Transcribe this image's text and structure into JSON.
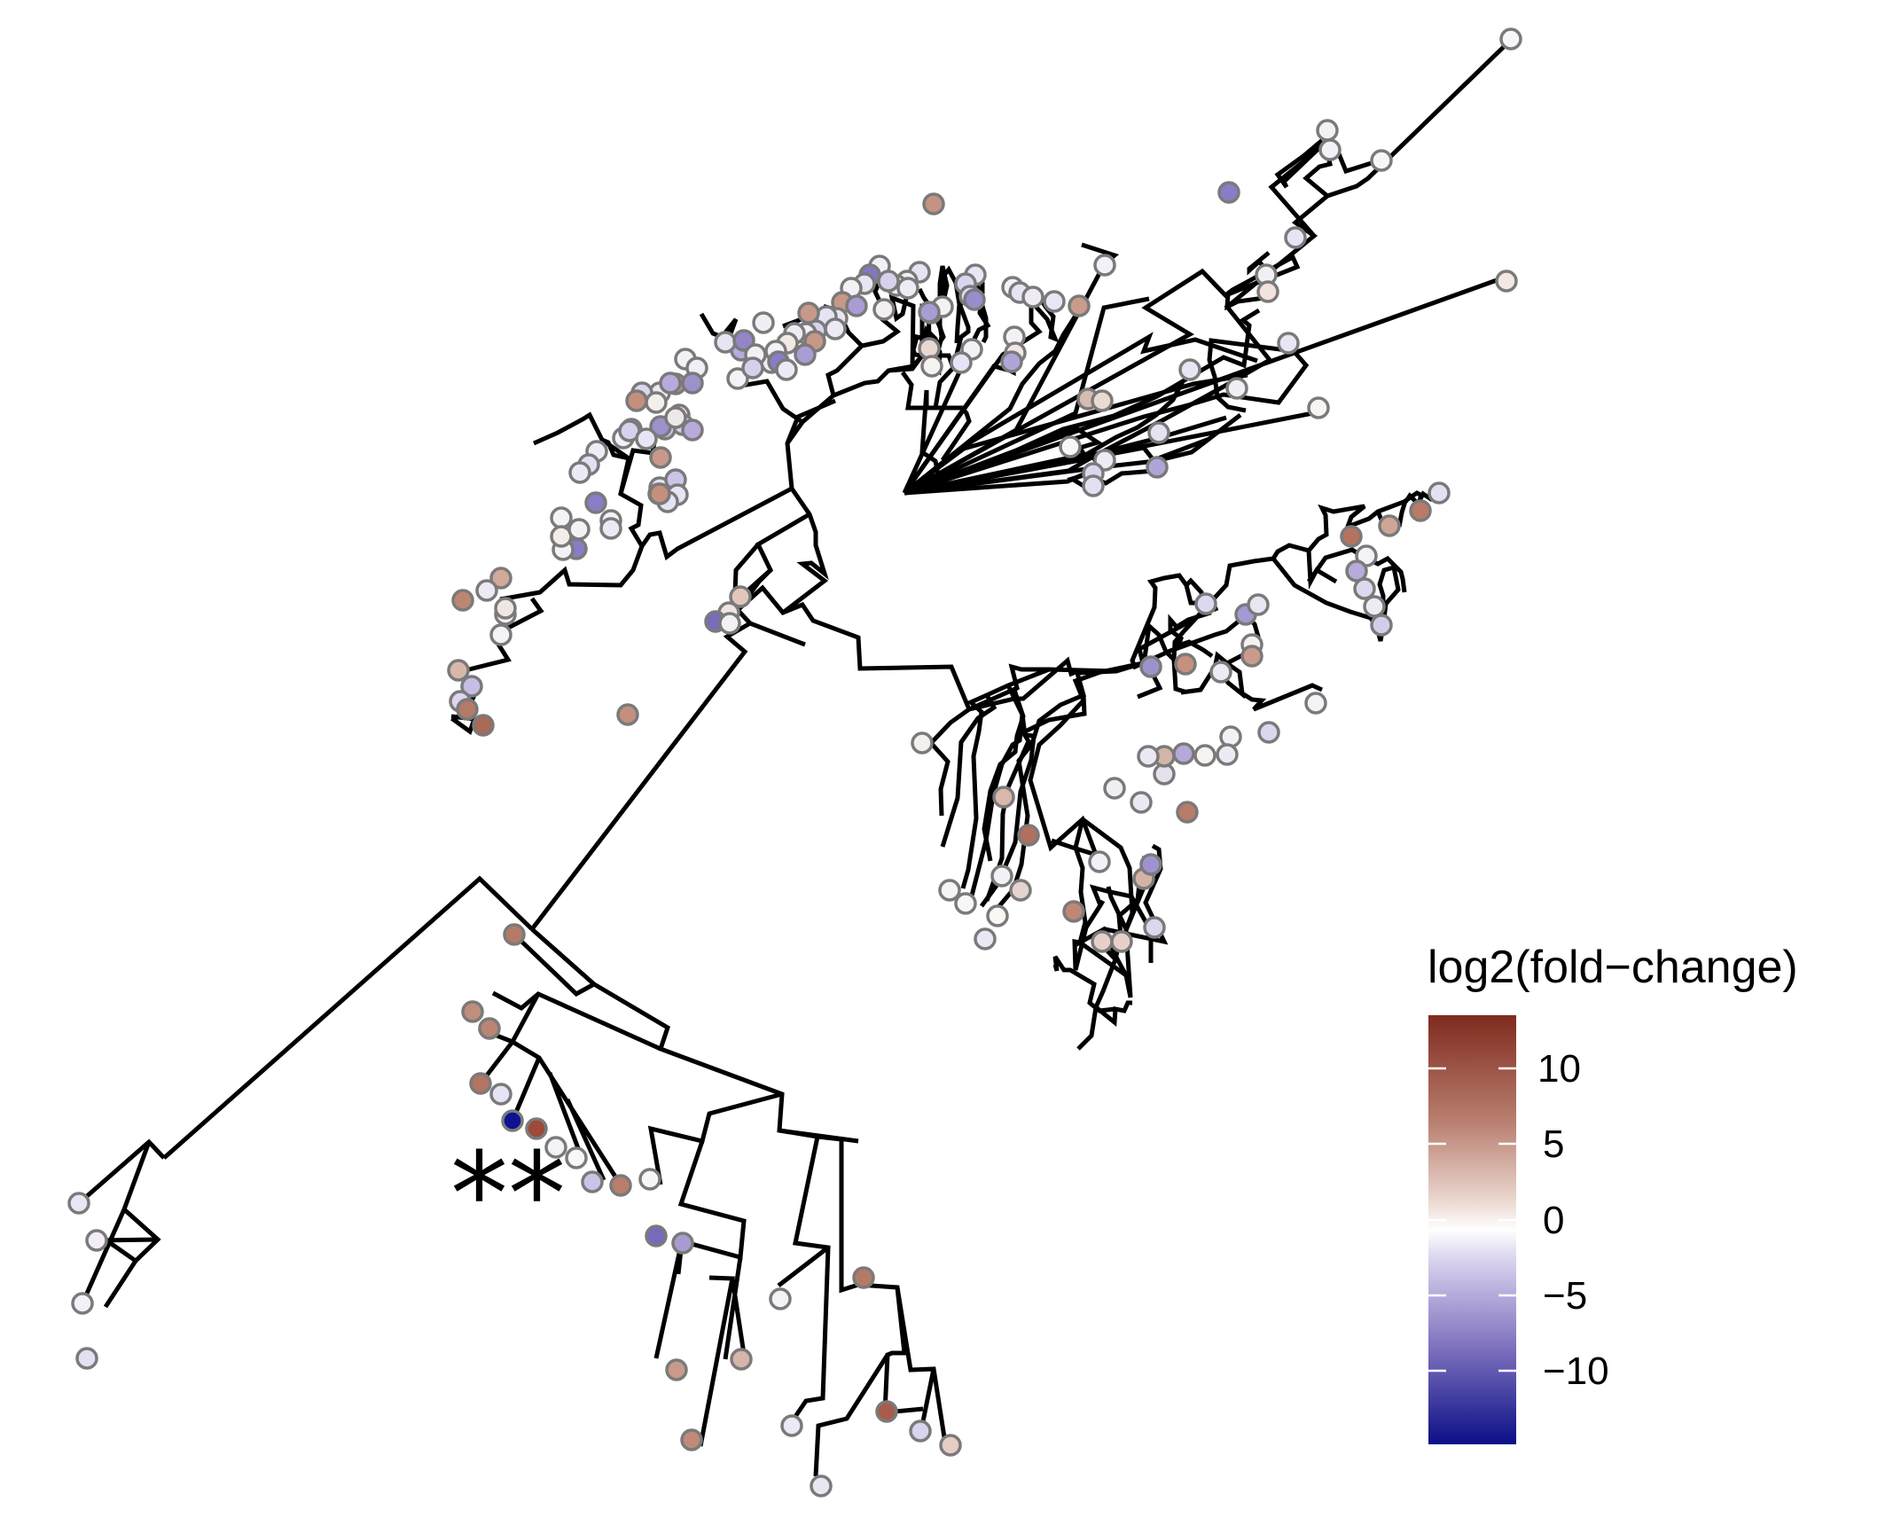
{
  "figure": {
    "type": "phylogenetic-tree",
    "tip_fill_scale": "log2 fold-change, diverging blue-white-red",
    "tip_outline_color": "#7a7a7a",
    "branch_color": "#000000"
  },
  "annotation": {
    "marker": "**"
  },
  "legend": {
    "title": "log2(fold−change)",
    "ticks": [
      "10",
      "5",
      "0",
      "−5",
      "−10"
    ],
    "tick_values": [
      10,
      5,
      0,
      -5,
      -10
    ],
    "range": [
      -14,
      14
    ],
    "colors": {
      "low": "#0b0f86",
      "mid": "#ffffff",
      "high": "#7f2a1e"
    }
  }
}
